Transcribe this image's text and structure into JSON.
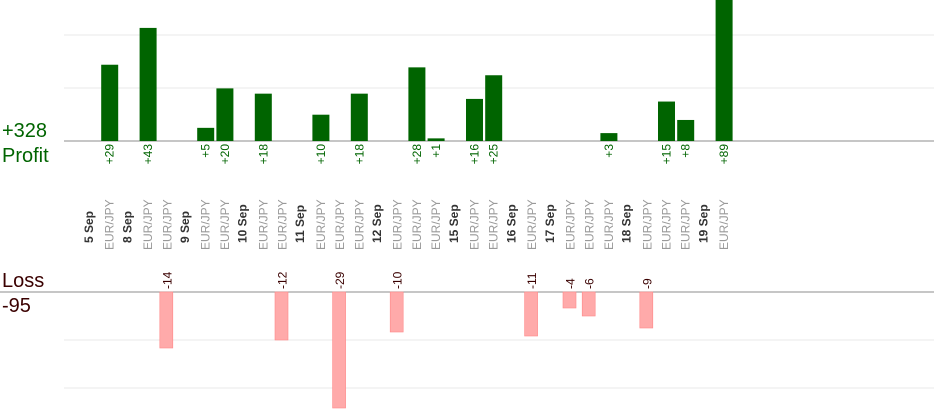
{
  "summary": {
    "profit_total": "+328",
    "profit_label": "Profit",
    "loss_label": "Loss",
    "loss_total": "-95"
  },
  "colors": {
    "profit_bar": "#006400",
    "loss_bar": "#ffaaaa",
    "profit_text": "#006400",
    "loss_text": "#3a0000"
  },
  "chart_data": {
    "type": "bar",
    "grid": true,
    "columns": [
      {
        "date": "5 Sep",
        "trades": [
          {
            "pair": "EUR/JPY",
            "value": 29
          }
        ]
      },
      {
        "date": "8 Sep",
        "trades": [
          {
            "pair": "EUR/JPY",
            "value": 43
          },
          {
            "pair": "EUR/JPY",
            "value": -14
          }
        ]
      },
      {
        "date": "9 Sep",
        "trades": [
          {
            "pair": "EUR/JPY",
            "value": 5
          },
          {
            "pair": "EUR/JPY",
            "value": 20
          }
        ]
      },
      {
        "date": "10 Sep",
        "trades": [
          {
            "pair": "EUR/JPY",
            "value": 18
          },
          {
            "pair": "EUR/JPY",
            "value": -12
          }
        ]
      },
      {
        "date": "11 Sep",
        "trades": [
          {
            "pair": "EUR/JPY",
            "value": 10
          },
          {
            "pair": "EUR/JPY",
            "value": -29
          },
          {
            "pair": "EUR/JPY",
            "value": 18
          }
        ]
      },
      {
        "date": "12 Sep",
        "trades": [
          {
            "pair": "EUR/JPY",
            "value": -10
          },
          {
            "pair": "EUR/JPY",
            "value": 28
          },
          {
            "pair": "EUR/JPY",
            "value": 1
          }
        ]
      },
      {
        "date": "15 Sep",
        "trades": [
          {
            "pair": "EUR/JPY",
            "value": 16
          },
          {
            "pair": "EUR/JPY",
            "value": 25
          }
        ]
      },
      {
        "date": "16 Sep",
        "trades": [
          {
            "pair": "EUR/JPY",
            "value": -11
          }
        ]
      },
      {
        "date": "17 Sep",
        "trades": [
          {
            "pair": "EUR/JPY",
            "value": -4
          },
          {
            "pair": "EUR/JPY",
            "value": -6
          },
          {
            "pair": "EUR/JPY",
            "value": 3
          }
        ]
      },
      {
        "date": "18 Sep",
        "trades": [
          {
            "pair": "EUR/JPY",
            "value": -9
          },
          {
            "pair": "EUR/JPY",
            "value": 15
          },
          {
            "pair": "EUR/JPY",
            "value": 8
          }
        ]
      },
      {
        "date": "19 Sep",
        "trades": [
          {
            "pair": "EUR/JPY",
            "value": 89
          }
        ]
      }
    ]
  }
}
